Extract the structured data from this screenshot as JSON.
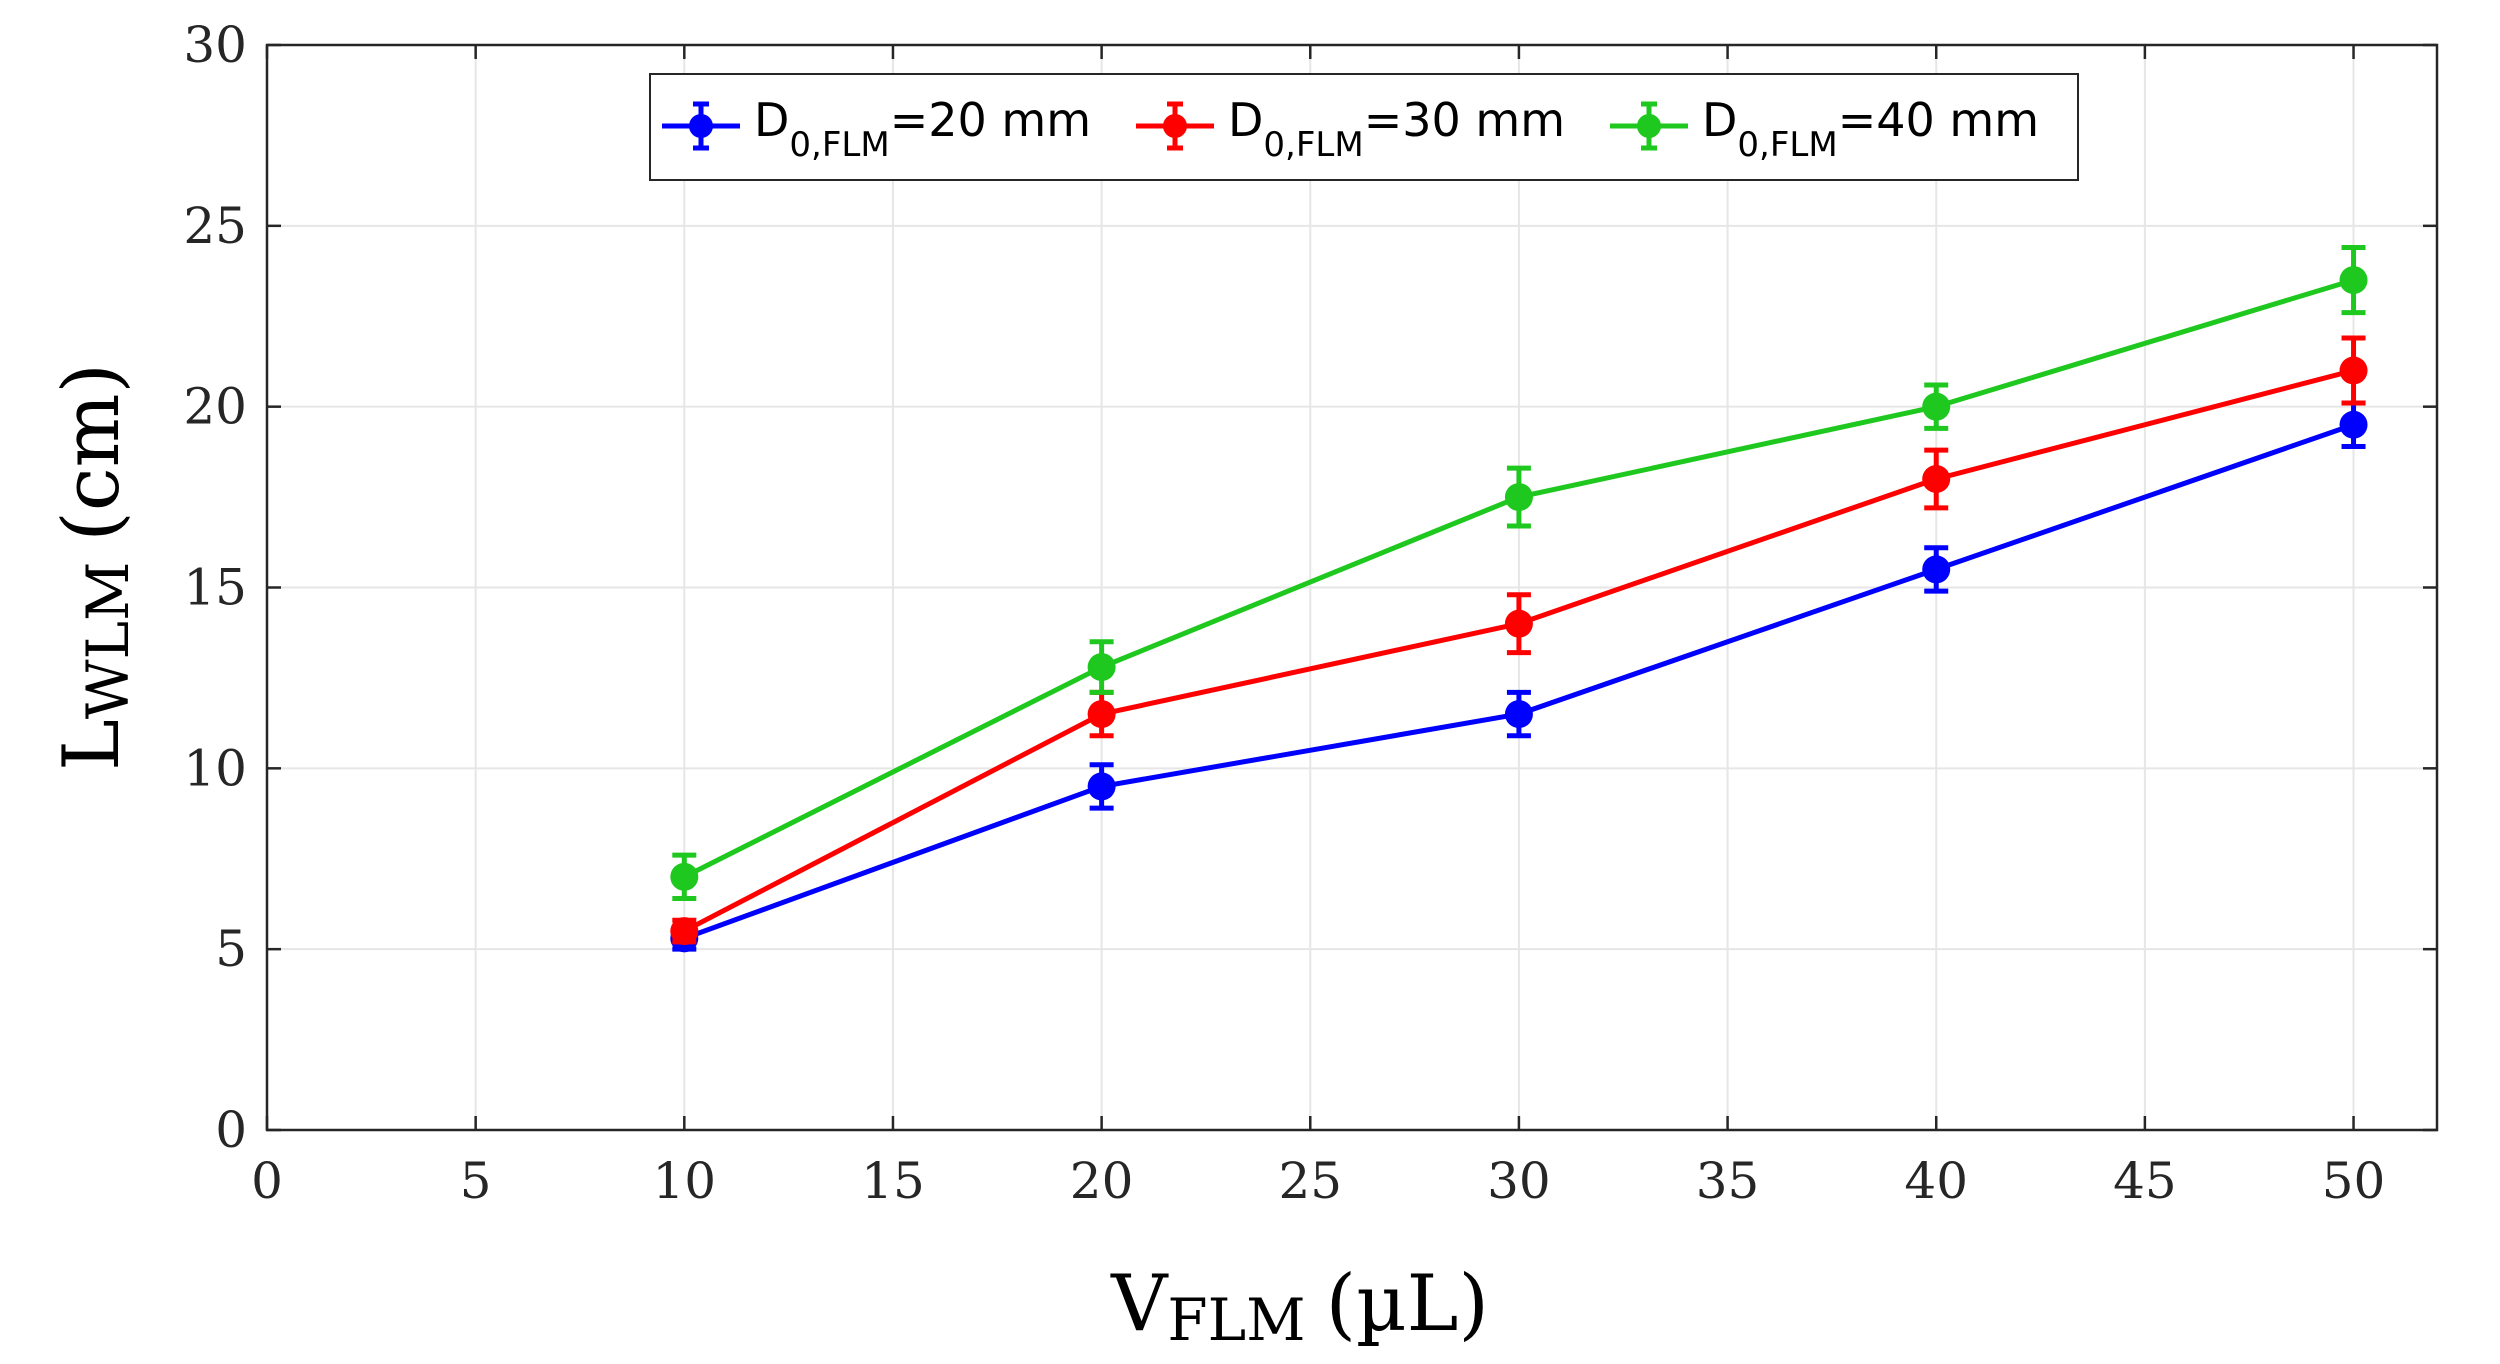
{
  "chart_data": {
    "type": "line",
    "title": "",
    "xlabel": {
      "main": "V",
      "sub": "FLM",
      "unit": "(µL)"
    },
    "ylabel": {
      "main": "L",
      "sub": "WLM",
      "unit": "(cm)"
    },
    "xlim": [
      0,
      52
    ],
    "ylim": [
      0,
      30
    ],
    "xticks": [
      0,
      5,
      10,
      15,
      20,
      25,
      30,
      35,
      40,
      45,
      50
    ],
    "yticks": [
      0,
      5,
      10,
      15,
      20,
      25,
      30
    ],
    "grid": true,
    "legend_position": "top-center",
    "x": [
      10,
      20,
      30,
      40,
      50
    ],
    "series": [
      {
        "name": "D0,FLM=20 mm",
        "label_main": "D",
        "label_sub": "0,FLM",
        "label_tail": "=20 mm",
        "color": "#0000ff",
        "values": [
          5.3,
          9.5,
          11.5,
          15.5,
          19.5
        ],
        "errors": [
          0.3,
          0.6,
          0.6,
          0.6,
          0.6
        ]
      },
      {
        "name": "D0,FLM=30 mm",
        "label_main": "D",
        "label_sub": "0,FLM",
        "label_tail": "=30 mm",
        "color": "#ff0000",
        "values": [
          5.5,
          11.5,
          14.0,
          18.0,
          21.0
        ],
        "errors": [
          0.3,
          0.6,
          0.8,
          0.8,
          0.9
        ]
      },
      {
        "name": "D0,FLM=40 mm",
        "label_main": "D",
        "label_sub": "0,FLM",
        "label_tail": "=40 mm",
        "color": "#1ec81e",
        "values": [
          7.0,
          12.8,
          17.5,
          20.0,
          23.5
        ],
        "errors": [
          0.6,
          0.7,
          0.8,
          0.6,
          0.9
        ]
      }
    ]
  }
}
